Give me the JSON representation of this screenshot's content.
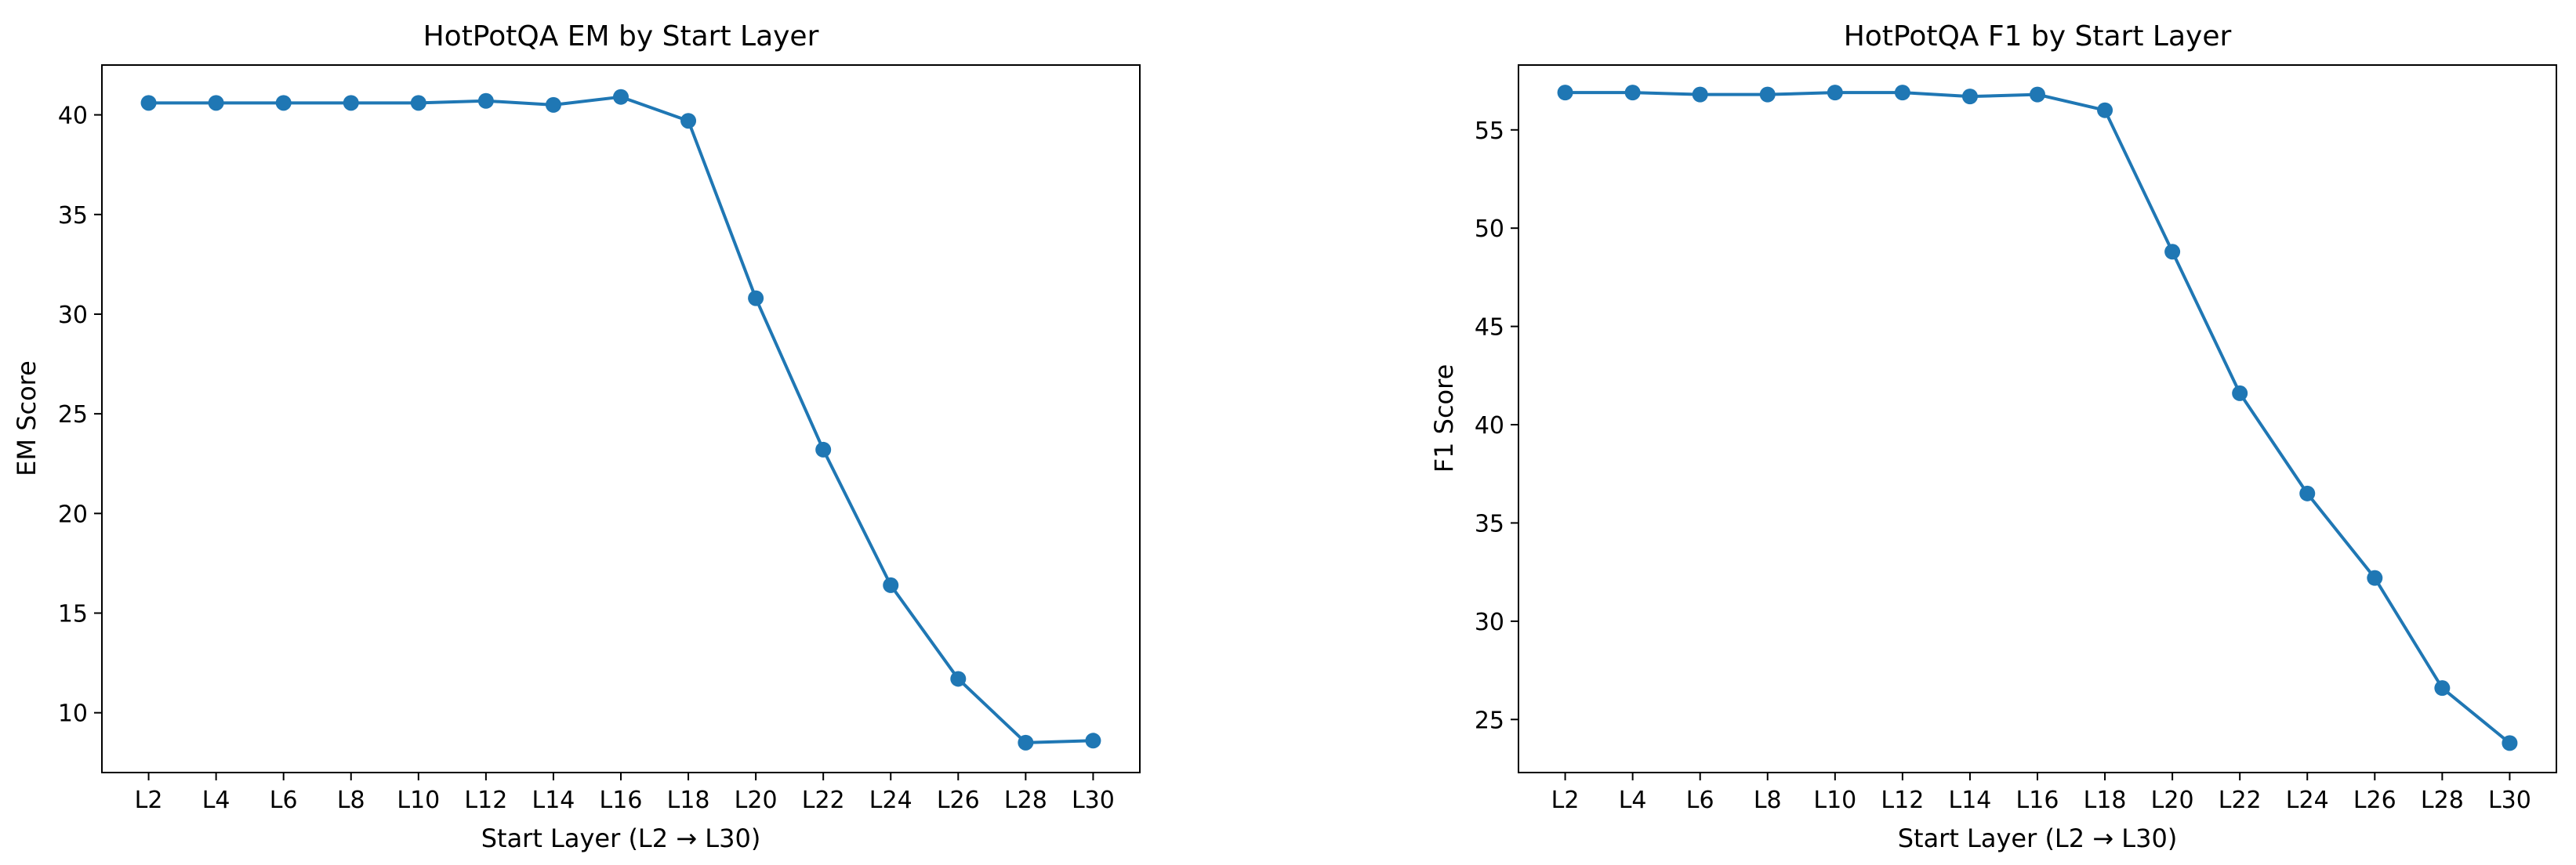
{
  "page": {
    "background": "#ffffff"
  },
  "chart_data": [
    {
      "type": "line",
      "title": "HotPotQA EM by Start Layer",
      "xlabel": "Start Layer (L2 → L30)",
      "ylabel": "EM Score",
      "categories": [
        "L2",
        "L4",
        "L6",
        "L8",
        "L10",
        "L12",
        "L14",
        "L16",
        "L18",
        "L20",
        "L22",
        "L24",
        "L26",
        "L28",
        "L30"
      ],
      "series": [
        {
          "values": [
            40.6,
            40.6,
            40.6,
            40.6,
            40.6,
            40.7,
            40.5,
            40.9,
            39.7,
            30.8,
            23.2,
            16.4,
            11.7,
            8.5,
            8.6
          ],
          "color": "#1f77b4",
          "marker": "circle"
        }
      ],
      "ylim": [
        7,
        42.5
      ],
      "yticks": [
        10,
        15,
        20,
        25,
        30,
        35,
        40
      ],
      "grid": false,
      "legend": "none"
    },
    {
      "type": "line",
      "title": "HotPotQA F1 by Start Layer",
      "xlabel": "Start Layer (L2 → L30)",
      "ylabel": "F1 Score",
      "categories": [
        "L2",
        "L4",
        "L6",
        "L8",
        "L10",
        "L12",
        "L14",
        "L16",
        "L18",
        "L20",
        "L22",
        "L24",
        "L26",
        "L28",
        "L30"
      ],
      "series": [
        {
          "values": [
            56.9,
            56.9,
            56.8,
            56.8,
            56.9,
            56.9,
            56.7,
            56.8,
            56.0,
            48.8,
            41.6,
            36.5,
            32.2,
            26.6,
            23.8
          ],
          "color": "#1f77b4",
          "marker": "circle"
        }
      ],
      "ylim": [
        22.3,
        58.3
      ],
      "yticks": [
        25,
        30,
        35,
        40,
        45,
        50,
        55
      ],
      "grid": false,
      "legend": "none"
    }
  ]
}
